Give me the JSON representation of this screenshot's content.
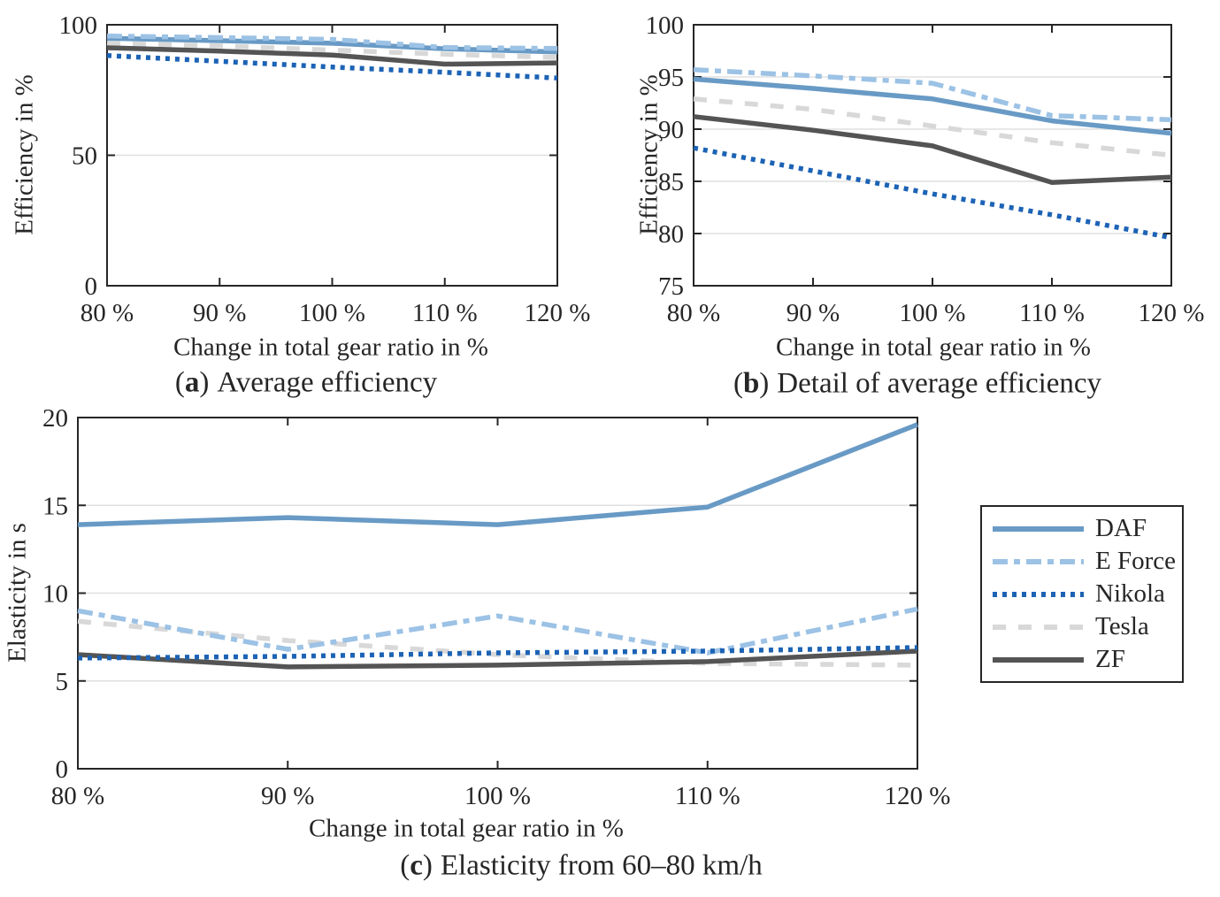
{
  "figure": {
    "background": "#FFFFFF",
    "axis_color": "#262626",
    "grid_color": "#E0E0E0",
    "text_color": "#262626",
    "series_styles": [
      {
        "name": "DAF",
        "color": "#689AC5",
        "style": "solid"
      },
      {
        "name": "E Force",
        "color": "#9CC2E5",
        "style": "dashdot"
      },
      {
        "name": "Nikola",
        "color": "#1C63B5",
        "style": "dotted"
      },
      {
        "name": "Tesla",
        "color": "#D8D8D8",
        "style": "dashed"
      },
      {
        "name": "ZF",
        "color": "#545454",
        "style": "solid"
      }
    ]
  },
  "chart_data": [
    {
      "id": "a",
      "type": "line",
      "caption": {
        "paren_open": "(",
        "letter": "a",
        "paren_close": ")",
        "text": "Average efficiency"
      },
      "xlabel": "Change in total gear ratio in %",
      "ylabel": "Efficiency in %",
      "x_tick_labels": [
        "80 %",
        "90 %",
        "100 %",
        "110 %",
        "120 %"
      ],
      "x_values": [
        80,
        90,
        100,
        110,
        120
      ],
      "ylim": [
        0,
        100
      ],
      "yticks": [
        0,
        50,
        100
      ],
      "grid": "horizontal",
      "legend_position": "none",
      "series": [
        {
          "name": "DAF",
          "values": [
            94.8,
            93.9,
            92.9,
            90.8,
            89.6
          ]
        },
        {
          "name": "E Force",
          "values": [
            95.7,
            95.1,
            94.4,
            91.3,
            90.9
          ]
        },
        {
          "name": "Nikola",
          "values": [
            88.2,
            86.0,
            83.8,
            81.8,
            79.6
          ]
        },
        {
          "name": "Tesla",
          "values": [
            92.9,
            91.9,
            90.3,
            88.7,
            87.5
          ]
        },
        {
          "name": "ZF",
          "values": [
            91.2,
            89.9,
            88.4,
            84.9,
            85.4
          ]
        }
      ]
    },
    {
      "id": "b",
      "type": "line",
      "caption": {
        "paren_open": "(",
        "letter": "b",
        "paren_close": ")",
        "text": "Detail of average efficiency"
      },
      "xlabel": "Change in total gear ratio in %",
      "ylabel": "Efficiency in %",
      "x_tick_labels": [
        "80 %",
        "90 %",
        "100 %",
        "110 %",
        "120 %"
      ],
      "x_values": [
        80,
        90,
        100,
        110,
        120
      ],
      "ylim": [
        75,
        100
      ],
      "yticks": [
        75,
        80,
        85,
        90,
        95,
        100
      ],
      "grid": "horizontal",
      "legend_position": "none",
      "series": [
        {
          "name": "DAF",
          "values": [
            94.8,
            93.9,
            92.9,
            90.8,
            89.6
          ]
        },
        {
          "name": "E Force",
          "values": [
            95.7,
            95.1,
            94.4,
            91.3,
            90.9
          ]
        },
        {
          "name": "Nikola",
          "values": [
            88.2,
            86.0,
            83.8,
            81.8,
            79.6
          ]
        },
        {
          "name": "Tesla",
          "values": [
            92.9,
            91.9,
            90.3,
            88.7,
            87.5
          ]
        },
        {
          "name": "ZF",
          "values": [
            91.2,
            89.9,
            88.4,
            84.9,
            85.4
          ]
        }
      ]
    },
    {
      "id": "c",
      "type": "line",
      "caption": {
        "paren_open": "(",
        "letter": "c",
        "paren_close": ")",
        "text": "Elasticity from 60–80 km/h"
      },
      "xlabel": "Change in total gear ratio in %",
      "ylabel": "Elasticity in s",
      "x_tick_labels": [
        "80 %",
        "90 %",
        "100 %",
        "110 %",
        "120 %"
      ],
      "x_values": [
        80,
        90,
        100,
        110,
        120
      ],
      "ylim": [
        0,
        20
      ],
      "yticks": [
        0,
        5,
        10,
        15,
        20
      ],
      "grid": "horizontal",
      "legend_position": "right-outside",
      "series": [
        {
          "name": "DAF",
          "values": [
            13.9,
            14.3,
            13.9,
            14.9,
            19.6
          ]
        },
        {
          "name": "E Force",
          "values": [
            9.0,
            6.8,
            8.7,
            6.6,
            9.1
          ]
        },
        {
          "name": "Nikola",
          "values": [
            6.3,
            6.4,
            6.6,
            6.7,
            6.9
          ]
        },
        {
          "name": "Tesla",
          "values": [
            8.4,
            7.3,
            6.5,
            6.0,
            5.9
          ]
        },
        {
          "name": "ZF",
          "values": [
            6.5,
            5.8,
            5.9,
            6.1,
            6.7
          ]
        }
      ]
    }
  ]
}
